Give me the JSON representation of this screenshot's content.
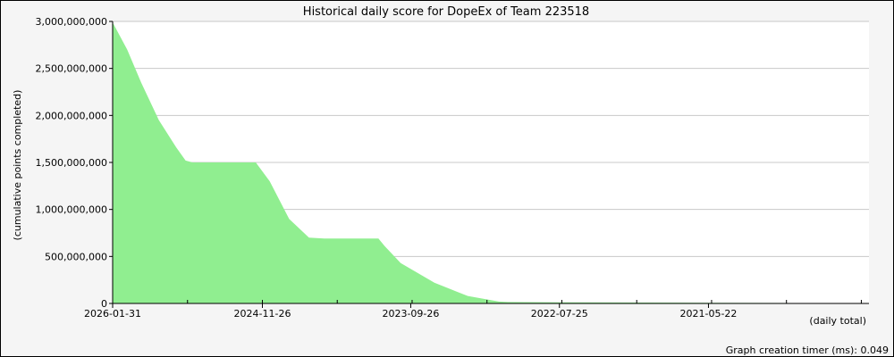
{
  "chart_data": {
    "type": "area",
    "title": "Historical daily score for DopeEx of Team 223518",
    "xlabel": "(daily total)",
    "ylabel": "(cumulative points completed)",
    "x_direction": "reversed",
    "x_start": "2026-01-31",
    "x_end": "2020-02-15",
    "xtick_labels": [
      "2026-01-31",
      "2024-11-26",
      "2023-09-26",
      "2022-07-25",
      "2021-05-22"
    ],
    "ylim": [
      0,
      3000000000
    ],
    "yticks": [
      0,
      500000000,
      1000000000,
      1500000000,
      2000000000,
      2500000000,
      3000000000
    ],
    "ytick_labels": [
      "0",
      "500,000,000",
      "1,000,000,000",
      "1,500,000,000",
      "2,000,000,000",
      "2,500,000,000",
      "3,000,000,000"
    ],
    "grid": true,
    "fill_color": "#90ee90",
    "series": [
      {
        "points": [
          [
            "2026-01-31",
            2990000000
          ],
          [
            "2025-12-20",
            2700000000
          ],
          [
            "2025-11-10",
            2350000000
          ],
          [
            "2025-09-20",
            1950000000
          ],
          [
            "2025-08-01",
            1660000000
          ],
          [
            "2025-07-05",
            1520000000
          ],
          [
            "2025-06-15",
            1500000000
          ],
          [
            "2024-12-15",
            1500000000
          ],
          [
            "2024-11-05",
            1300000000
          ],
          [
            "2024-09-10",
            900000000
          ],
          [
            "2024-07-15",
            700000000
          ],
          [
            "2024-06-01",
            690000000
          ],
          [
            "2023-12-28",
            690000000
          ],
          [
            "2023-12-10",
            610000000
          ],
          [
            "2023-10-25",
            430000000
          ],
          [
            "2023-07-20",
            220000000
          ],
          [
            "2023-04-15",
            80000000
          ],
          [
            "2023-01-15",
            20000000
          ],
          [
            "2022-12-20",
            15000000
          ],
          [
            "2022-07-25",
            12000000
          ],
          [
            "2021-05-22",
            8000000
          ],
          [
            "2020-07-20",
            5000000
          ],
          [
            "2020-06-01",
            0
          ]
        ]
      }
    ]
  },
  "footer": {
    "timer_text": "Graph creation timer (ms): 0.049"
  }
}
